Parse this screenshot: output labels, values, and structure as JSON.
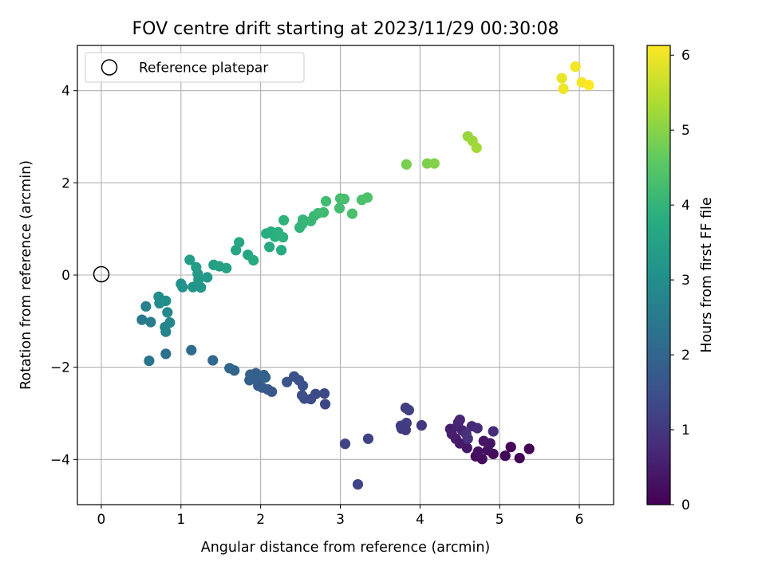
{
  "chart_data": {
    "type": "scatter",
    "title": "FOV centre drift starting at 2023/11/29 00:30:08",
    "xlabel": "Angular distance from reference (arcmin)",
    "ylabel": "Rotation from reference (arcmin)",
    "xlim": [
      -0.3,
      6.43
    ],
    "ylim": [
      -4.98,
      4.98
    ],
    "xticks": [
      0,
      1,
      2,
      3,
      4,
      5,
      6
    ],
    "yticks": [
      -4,
      -2,
      0,
      2,
      4
    ],
    "grid": true,
    "legend": {
      "position": "top-left",
      "entries": [
        "Reference platepar"
      ]
    },
    "reference_point": {
      "x": 0,
      "y": 0,
      "label": "Reference platepar"
    },
    "colorbar": {
      "label": "Hours from first FF file",
      "min": 0,
      "max": 6.13,
      "ticks": [
        0,
        1,
        2,
        3,
        4,
        5,
        6
      ],
      "colormap": "viridis"
    },
    "points": [
      {
        "x": 5.37,
        "y": -3.77,
        "c": 0.02
      },
      {
        "x": 5.25,
        "y": -3.97,
        "c": 0.05
      },
      {
        "x": 5.14,
        "y": -3.73,
        "c": 0.08
      },
      {
        "x": 5.07,
        "y": -3.92,
        "c": 0.12
      },
      {
        "x": 4.92,
        "y": -3.88,
        "c": 0.15
      },
      {
        "x": 4.78,
        "y": -3.99,
        "c": 0.18
      },
      {
        "x": 4.7,
        "y": -3.93,
        "c": 0.22
      },
      {
        "x": 4.85,
        "y": -3.8,
        "c": 0.26
      },
      {
        "x": 4.73,
        "y": -3.83,
        "c": 0.3
      },
      {
        "x": 4.88,
        "y": -3.65,
        "c": 0.33
      },
      {
        "x": 4.8,
        "y": -3.6,
        "c": 0.37
      },
      {
        "x": 4.59,
        "y": -3.75,
        "c": 0.4
      },
      {
        "x": 4.5,
        "y": -3.65,
        "c": 0.44
      },
      {
        "x": 4.45,
        "y": -3.55,
        "c": 0.47
      },
      {
        "x": 4.4,
        "y": -3.45,
        "c": 0.51
      },
      {
        "x": 4.38,
        "y": -3.34,
        "c": 0.55
      },
      {
        "x": 4.47,
        "y": -3.28,
        "c": 0.58
      },
      {
        "x": 4.53,
        "y": -3.37,
        "c": 0.62
      },
      {
        "x": 4.48,
        "y": -3.2,
        "c": 0.65
      },
      {
        "x": 4.5,
        "y": -3.14,
        "c": 0.68
      },
      {
        "x": 4.65,
        "y": -3.28,
        "c": 0.72
      },
      {
        "x": 4.72,
        "y": -3.32,
        "c": 0.75
      },
      {
        "x": 4.92,
        "y": -3.39,
        "c": 0.79
      },
      {
        "x": 4.58,
        "y": -3.45,
        "c": 0.82
      },
      {
        "x": 4.6,
        "y": -3.55,
        "c": 0.86
      },
      {
        "x": 4.02,
        "y": -3.26,
        "c": 0.98
      },
      {
        "x": 3.77,
        "y": -3.33,
        "c": 1.02
      },
      {
        "x": 3.82,
        "y": -3.36,
        "c": 1.05
      },
      {
        "x": 3.83,
        "y": -3.21,
        "c": 1.08
      },
      {
        "x": 3.76,
        "y": -3.27,
        "c": 1.1
      },
      {
        "x": 3.82,
        "y": -2.88,
        "c": 1.13
      },
      {
        "x": 3.86,
        "y": -2.93,
        "c": 1.16
      },
      {
        "x": 3.35,
        "y": -3.55,
        "c": 1.2
      },
      {
        "x": 3.06,
        "y": -3.66,
        "c": 1.23
      },
      {
        "x": 3.22,
        "y": -4.54,
        "c": 1.27
      },
      {
        "x": 2.81,
        "y": -2.8,
        "c": 1.32
      },
      {
        "x": 2.8,
        "y": -2.57,
        "c": 1.35
      },
      {
        "x": 2.69,
        "y": -2.58,
        "c": 1.38
      },
      {
        "x": 2.63,
        "y": -2.69,
        "c": 1.41
      },
      {
        "x": 2.55,
        "y": -2.68,
        "c": 1.44
      },
      {
        "x": 2.52,
        "y": -2.61,
        "c": 1.48
      },
      {
        "x": 2.53,
        "y": -2.4,
        "c": 1.51
      },
      {
        "x": 2.48,
        "y": -2.28,
        "c": 1.54
      },
      {
        "x": 2.42,
        "y": -2.2,
        "c": 1.58
      },
      {
        "x": 2.33,
        "y": -2.32,
        "c": 1.61
      },
      {
        "x": 2.14,
        "y": -2.53,
        "c": 1.65
      },
      {
        "x": 2.09,
        "y": -2.48,
        "c": 1.68
      },
      {
        "x": 2.02,
        "y": -2.44,
        "c": 1.71
      },
      {
        "x": 1.97,
        "y": -2.4,
        "c": 1.74
      },
      {
        "x": 1.98,
        "y": -2.27,
        "c": 1.77
      },
      {
        "x": 1.91,
        "y": -2.23,
        "c": 1.8
      },
      {
        "x": 1.86,
        "y": -2.28,
        "c": 1.83
      },
      {
        "x": 1.87,
        "y": -2.16,
        "c": 1.86
      },
      {
        "x": 1.94,
        "y": -2.13,
        "c": 1.89
      },
      {
        "x": 2.04,
        "y": -2.17,
        "c": 1.92
      },
      {
        "x": 2.06,
        "y": -2.22,
        "c": 1.95
      },
      {
        "x": 1.67,
        "y": -2.07,
        "c": 1.98
      },
      {
        "x": 1.61,
        "y": -2.02,
        "c": 2.01
      },
      {
        "x": 1.4,
        "y": -1.85,
        "c": 2.05
      },
      {
        "x": 1.13,
        "y": -1.63,
        "c": 2.1
      },
      {
        "x": 0.81,
        "y": -1.71,
        "c": 2.25
      },
      {
        "x": 0.6,
        "y": -1.86,
        "c": 2.35
      },
      {
        "x": 0.51,
        "y": -0.97,
        "c": 2.45
      },
      {
        "x": 0.62,
        "y": -1.02,
        "c": 2.55
      },
      {
        "x": 0.56,
        "y": -0.68,
        "c": 2.65
      },
      {
        "x": 0.81,
        "y": -1.23,
        "c": 2.72
      },
      {
        "x": 0.8,
        "y": -1.13,
        "c": 2.76
      },
      {
        "x": 0.86,
        "y": -1.03,
        "c": 2.8
      },
      {
        "x": 0.83,
        "y": -0.81,
        "c": 2.85
      },
      {
        "x": 0.73,
        "y": -0.61,
        "c": 2.9
      },
      {
        "x": 0.76,
        "y": -0.57,
        "c": 2.94
      },
      {
        "x": 0.72,
        "y": -0.47,
        "c": 2.98
      },
      {
        "x": 0.81,
        "y": -0.56,
        "c": 3.02
      },
      {
        "x": 1.0,
        "y": -0.19,
        "c": 3.08
      },
      {
        "x": 1.02,
        "y": -0.26,
        "c": 3.12
      },
      {
        "x": 1.15,
        "y": -0.26,
        "c": 3.16
      },
      {
        "x": 1.25,
        "y": -0.27,
        "c": 3.2
      },
      {
        "x": 1.22,
        "y": -0.1,
        "c": 3.24
      },
      {
        "x": 1.33,
        "y": -0.05,
        "c": 3.28
      },
      {
        "x": 1.21,
        "y": 0.03,
        "c": 3.32
      },
      {
        "x": 1.19,
        "y": 0.17,
        "c": 3.36
      },
      {
        "x": 1.11,
        "y": 0.33,
        "c": 3.4
      },
      {
        "x": 1.41,
        "y": 0.22,
        "c": 3.44
      },
      {
        "x": 1.48,
        "y": 0.19,
        "c": 3.48
      },
      {
        "x": 1.57,
        "y": 0.15,
        "c": 3.52
      },
      {
        "x": 1.69,
        "y": 0.54,
        "c": 3.57
      },
      {
        "x": 1.73,
        "y": 0.71,
        "c": 3.61
      },
      {
        "x": 1.84,
        "y": 0.44,
        "c": 3.65
      },
      {
        "x": 1.91,
        "y": 0.32,
        "c": 3.69
      },
      {
        "x": 2.11,
        "y": 0.61,
        "c": 3.73
      },
      {
        "x": 2.26,
        "y": 0.54,
        "c": 3.77
      },
      {
        "x": 2.07,
        "y": 0.9,
        "c": 3.8
      },
      {
        "x": 2.13,
        "y": 0.94,
        "c": 3.83
      },
      {
        "x": 2.18,
        "y": 0.83,
        "c": 3.86
      },
      {
        "x": 2.22,
        "y": 0.93,
        "c": 3.89
      },
      {
        "x": 2.28,
        "y": 0.82,
        "c": 3.92
      },
      {
        "x": 2.29,
        "y": 1.19,
        "c": 3.95
      },
      {
        "x": 2.49,
        "y": 1.03,
        "c": 3.98
      },
      {
        "x": 2.52,
        "y": 1.1,
        "c": 4.01
      },
      {
        "x": 2.53,
        "y": 1.2,
        "c": 4.04
      },
      {
        "x": 2.63,
        "y": 1.17,
        "c": 4.07
      },
      {
        "x": 2.67,
        "y": 1.28,
        "c": 4.1
      },
      {
        "x": 2.72,
        "y": 1.34,
        "c": 4.13
      },
      {
        "x": 2.79,
        "y": 1.36,
        "c": 4.16
      },
      {
        "x": 2.82,
        "y": 1.6,
        "c": 4.19
      },
      {
        "x": 2.99,
        "y": 1.45,
        "c": 4.22
      },
      {
        "x": 3.0,
        "y": 1.66,
        "c": 4.25
      },
      {
        "x": 3.05,
        "y": 1.65,
        "c": 4.28
      },
      {
        "x": 3.15,
        "y": 1.33,
        "c": 4.31
      },
      {
        "x": 3.27,
        "y": 1.63,
        "c": 4.34
      },
      {
        "x": 3.34,
        "y": 1.68,
        "c": 4.37
      },
      {
        "x": 3.83,
        "y": 2.4,
        "c": 4.85
      },
      {
        "x": 4.09,
        "y": 2.42,
        "c": 4.9
      },
      {
        "x": 4.18,
        "y": 2.42,
        "c": 4.95
      },
      {
        "x": 4.6,
        "y": 3.01,
        "c": 5.15
      },
      {
        "x": 4.66,
        "y": 2.91,
        "c": 5.2
      },
      {
        "x": 4.71,
        "y": 2.76,
        "c": 5.25
      },
      {
        "x": 5.78,
        "y": 4.27,
        "c": 5.95
      },
      {
        "x": 5.8,
        "y": 4.04,
        "c": 5.99
      },
      {
        "x": 5.95,
        "y": 4.52,
        "c": 6.03
      },
      {
        "x": 6.03,
        "y": 4.18,
        "c": 6.07
      },
      {
        "x": 6.12,
        "y": 4.12,
        "c": 6.11
      }
    ]
  }
}
